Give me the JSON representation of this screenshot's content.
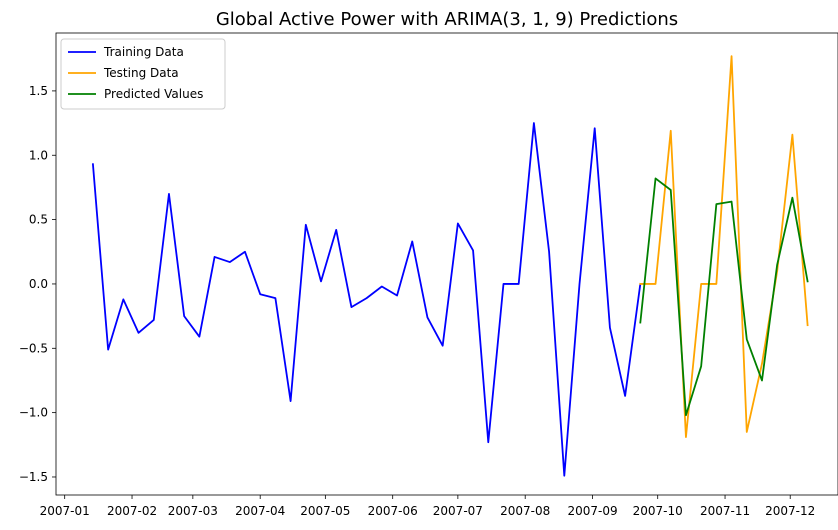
{
  "chart_data": {
    "type": "line",
    "title": "Global Active Power with ARIMA(3, 1, 9) Predictions",
    "xlabel": "",
    "ylabel": "",
    "x_ticks": [
      "2007-01",
      "2007-02",
      "2007-03",
      "2007-04",
      "2007-05",
      "2007-06",
      "2007-07",
      "2007-08",
      "2007-09",
      "2007-10",
      "2007-11",
      "2007-12"
    ],
    "y_ticks": [
      "−1.5",
      "−1.0",
      "−0.5",
      "0.0",
      "0.5",
      "1.0",
      "1.5"
    ],
    "xlim": [
      "2006-12-28",
      "2007-12-23"
    ],
    "ylim": [
      -1.64,
      1.95
    ],
    "grid": false,
    "legend_position": "top-left",
    "series": [
      {
        "name": "Training Data",
        "color": "#0000ff",
        "points": [
          [
            "2007-01-14",
            0.93
          ],
          [
            "2007-01-21",
            -0.51
          ],
          [
            "2007-01-28",
            -0.12
          ],
          [
            "2007-02-04",
            -0.38
          ],
          [
            "2007-02-11",
            -0.28
          ],
          [
            "2007-02-18",
            0.7
          ],
          [
            "2007-02-25",
            -0.25
          ],
          [
            "2007-03-04",
            -0.41
          ],
          [
            "2007-03-11",
            0.21
          ],
          [
            "2007-03-18",
            0.17
          ],
          [
            "2007-03-25",
            0.25
          ],
          [
            "2007-04-01",
            -0.08
          ],
          [
            "2007-04-08",
            -0.11
          ],
          [
            "2007-04-15",
            -0.91
          ],
          [
            "2007-04-22",
            0.46
          ],
          [
            "2007-04-29",
            0.02
          ],
          [
            "2007-05-06",
            0.42
          ],
          [
            "2007-05-13",
            -0.18
          ],
          [
            "2007-05-20",
            -0.11
          ],
          [
            "2007-05-27",
            -0.02
          ],
          [
            "2007-06-03",
            -0.09
          ],
          [
            "2007-06-10",
            0.33
          ],
          [
            "2007-06-17",
            -0.26
          ],
          [
            "2007-06-24",
            -0.48
          ],
          [
            "2007-07-01",
            0.47
          ],
          [
            "2007-07-08",
            0.26
          ],
          [
            "2007-07-15",
            -1.23
          ],
          [
            "2007-07-22",
            0.0
          ],
          [
            "2007-07-29",
            0.0
          ],
          [
            "2007-08-05",
            1.25
          ],
          [
            "2007-08-12",
            0.25
          ],
          [
            "2007-08-19",
            -1.49
          ],
          [
            "2007-08-26",
            0.0
          ],
          [
            "2007-09-02",
            1.21
          ],
          [
            "2007-09-09",
            -0.34
          ],
          [
            "2007-09-16",
            -0.87
          ],
          [
            "2007-09-23",
            0.0
          ]
        ]
      },
      {
        "name": "Testing Data",
        "color": "#ffa500",
        "points": [
          [
            "2007-09-23",
            0.0
          ],
          [
            "2007-09-30",
            0.0
          ],
          [
            "2007-10-07",
            1.19
          ],
          [
            "2007-10-14",
            -1.19
          ],
          [
            "2007-10-21",
            0.0
          ],
          [
            "2007-10-28",
            0.0
          ],
          [
            "2007-11-04",
            1.77
          ],
          [
            "2007-11-11",
            -1.15
          ],
          [
            "2007-11-18",
            -0.62
          ],
          [
            "2007-11-25",
            0.1
          ],
          [
            "2007-12-02",
            1.16
          ],
          [
            "2007-12-09",
            -0.32
          ]
        ]
      },
      {
        "name": "Predicted Values",
        "color": "#008000",
        "points": [
          [
            "2007-09-23",
            -0.3
          ],
          [
            "2007-09-30",
            0.82
          ],
          [
            "2007-10-07",
            0.73
          ],
          [
            "2007-10-14",
            -1.02
          ],
          [
            "2007-10-21",
            -0.64
          ],
          [
            "2007-10-28",
            0.62
          ],
          [
            "2007-11-04",
            0.64
          ],
          [
            "2007-11-11",
            -0.43
          ],
          [
            "2007-11-18",
            -0.75
          ],
          [
            "2007-11-25",
            0.15
          ],
          [
            "2007-12-02",
            0.67
          ],
          [
            "2007-12-09",
            0.02
          ]
        ]
      }
    ]
  }
}
